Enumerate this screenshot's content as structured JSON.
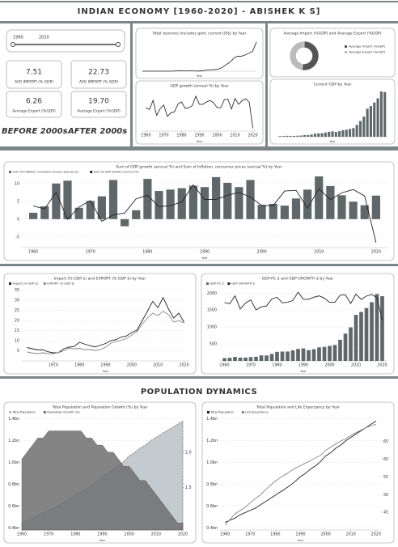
{
  "header": {
    "title": "INDIAN ECONOMY [1960-2020] - ABISHEK K S]"
  },
  "slicer": {
    "start": "1960",
    "end": "2020"
  },
  "kpis": {
    "before": [
      {
        "value": "7.51",
        "label": "AVG IMPORT (% GDP)"
      },
      {
        "value": "6.26",
        "label": "Average Export (%GDP)"
      }
    ],
    "after": [
      {
        "value": "22.73",
        "label": "AVG IMPORT (% GDP)"
      },
      {
        "value": "19.70",
        "label": "Average Export (%GDP)"
      }
    ]
  },
  "period_labels": {
    "before": "BEFORE 2000s",
    "after": "AFTER 2000s"
  },
  "section_title": "POPULATION DYNAMICS",
  "chart_data": [
    {
      "type": "line",
      "title": "Total reserves (includes gold, current US$) by Year",
      "xlabel": "Year",
      "x": [
        1960,
        1962,
        1964,
        1966,
        1968,
        1970,
        1972,
        1974,
        1976,
        1978,
        1980,
        1982,
        1984,
        1986,
        1988,
        1990,
        1992,
        1994,
        1996,
        1998,
        2000,
        2002,
        2004,
        2006,
        2008,
        2010,
        2012,
        2014,
        2016,
        2018,
        2020
      ],
      "xlim": [
        1960,
        2020
      ],
      "ylim": [
        0,
        650
      ],
      "series": [
        {
          "name": "Total reserves (includes gold, current US$)",
          "color": "#333333",
          "values": [
            0.7,
            0.6,
            0.5,
            0.6,
            0.8,
            1.0,
            1.2,
            1.4,
            2.9,
            7.4,
            11.9,
            5.7,
            6.4,
            6.6,
            5.8,
            3.9,
            9.8,
            25.2,
            24.9,
            32.5,
            41.1,
            75.4,
            131.0,
            178.0,
            257.4,
            300.5,
            300.4,
            325.1,
            361.7,
            399.2,
            590.2
          ]
        }
      ]
    },
    {
      "type": "line",
      "title": "GDP growth (annual %) by Year",
      "xlabel": "Year",
      "x": [
        1960,
        1962,
        1964,
        1966,
        1968,
        1970,
        1972,
        1974,
        1976,
        1978,
        1980,
        1982,
        1984,
        1986,
        1988,
        1990,
        1992,
        1994,
        1996,
        1998,
        2000,
        2002,
        2004,
        2006,
        2008,
        2010,
        2012,
        2014,
        2016,
        2018,
        2020
      ],
      "xlim": [
        1958,
        2022
      ],
      "xticks": [
        1960,
        1970,
        1980,
        1990,
        2000,
        2010,
        2020
      ],
      "ylim": [
        -8,
        12
      ],
      "series": [
        {
          "name": "GDP growth (annual %)",
          "color": "#333333",
          "values": [
            3.7,
            2.9,
            7.5,
            -0.1,
            3.4,
            5.2,
            -0.6,
            1.2,
            1.7,
            5.7,
            6.7,
            3.5,
            3.8,
            4.8,
            9.6,
            5.5,
            5.5,
            6.7,
            7.5,
            6.2,
            3.8,
            3.8,
            7.9,
            8.1,
            3.1,
            8.5,
            5.5,
            7.4,
            8.3,
            6.5,
            -6.6
          ]
        }
      ]
    },
    {
      "type": "pie",
      "title": "Average Import (%GDP) and Average Export (%GDP)",
      "categories": [
        "Average Import (%GDP)",
        "Average Export (%GDP)"
      ],
      "values": [
        12.5,
        11.3
      ],
      "colors": [
        "#555555",
        "#bbbbbb"
      ]
    },
    {
      "type": "bar",
      "title": "Current GDP by Year",
      "xlabel": "Year",
      "x": [
        1960,
        1962,
        1964,
        1966,
        1968,
        1970,
        1972,
        1974,
        1976,
        1978,
        1980,
        1982,
        1984,
        1986,
        1988,
        1990,
        1992,
        1994,
        1996,
        1998,
        2000,
        2002,
        2004,
        2006,
        2008,
        2010,
        2012,
        2014,
        2016,
        2018,
        2020
      ],
      "xlim": [
        1958,
        2022
      ],
      "ylim": [
        0,
        2800
      ],
      "series": [
        {
          "name": "Current GDP",
          "color": "#5f6869",
          "values": [
            37,
            42,
            56,
            46,
            53,
            62,
            71,
            99,
            102,
            136,
            186,
            201,
            208,
            249,
            296,
            321,
            288,
            333,
            392,
            421,
            468,
            514,
            709,
            940,
            1199,
            1676,
            1828,
            2039,
            2295,
            2703,
            2668
          ]
        }
      ]
    },
    {
      "type": "combo",
      "title": "Sum of GDP growth (annual %) and Sum of Inflation, consumer prices (annual %) by Year",
      "xlabel": "Year",
      "x": [
        1960,
        1962,
        1964,
        1966,
        1968,
        1970,
        1972,
        1974,
        1976,
        1978,
        1980,
        1982,
        1984,
        1986,
        1988,
        1990,
        1992,
        1994,
        1996,
        1998,
        2000,
        2002,
        2004,
        2006,
        2008,
        2010,
        2012,
        2014,
        2016,
        2018,
        2020
      ],
      "xlim": [
        1958,
        2022
      ],
      "xticks": [
        1960,
        1970,
        1980,
        1990,
        2000,
        2010,
        2020
      ],
      "ylim": [
        -8,
        12
      ],
      "yticks": [
        -5,
        0,
        5,
        10
      ],
      "grid": true,
      "series": [
        {
          "name": "Sum of Inflation, consumer prices (annual %)",
          "kind": "bar",
          "color": "#5f6869",
          "values": [
            1.8,
            3.6,
            10.0,
            10.8,
            3.2,
            5.1,
            6.4,
            11.0,
            -2.0,
            2.5,
            11.3,
            7.9,
            8.3,
            8.7,
            9.4,
            9.0,
            11.8,
            10.2,
            9.0,
            11.0,
            4.0,
            4.3,
            3.8,
            5.8,
            8.3,
            12.0,
            9.3,
            6.7,
            4.9,
            3.9,
            6.6
          ]
        },
        {
          "name": "Sum of GDP growth (annual %)",
          "kind": "line",
          "color": "#222222",
          "values": [
            3.7,
            2.9,
            7.5,
            -0.1,
            3.4,
            5.2,
            -0.6,
            1.2,
            1.7,
            5.7,
            6.7,
            3.5,
            3.8,
            4.8,
            9.6,
            5.5,
            5.5,
            6.7,
            7.5,
            6.2,
            3.8,
            3.8,
            7.9,
            8.1,
            3.1,
            8.5,
            5.5,
            7.4,
            8.3,
            6.5,
            -6.6
          ]
        }
      ]
    },
    {
      "type": "line",
      "title": "Import (% GDP $) and EXPORT (% GDP $) by Year",
      "xlabel": "Year",
      "x": [
        1960,
        1962,
        1964,
        1966,
        1968,
        1970,
        1972,
        1974,
        1976,
        1978,
        1980,
        1982,
        1984,
        1986,
        1988,
        1990,
        1992,
        1994,
        1996,
        1998,
        2000,
        2002,
        2004,
        2006,
        2008,
        2010,
        2012,
        2014,
        2016,
        2018,
        2020
      ],
      "xlim": [
        1958,
        2022
      ],
      "xticks": [
        1970,
        1980,
        1990,
        2000,
        2010,
        2020
      ],
      "ylim": [
        0,
        36
      ],
      "yticks": [
        5,
        10,
        15,
        20,
        25,
        30,
        35
      ],
      "grid": true,
      "series": [
        {
          "name": "Import (% GDP $)",
          "color": "#222222",
          "values": [
            6.6,
            6.0,
            5.5,
            5.5,
            4.5,
            4.0,
            4.0,
            6.0,
            6.8,
            7.1,
            9.2,
            8.3,
            7.5,
            6.9,
            7.7,
            8.6,
            10.0,
            10.5,
            11.8,
            12.3,
            14.1,
            15.2,
            19.9,
            24.5,
            29.4,
            26.3,
            31.3,
            25.8,
            21.2,
            23.6,
            19.1
          ]
        },
        {
          "name": "EXPORT (% GDP $)",
          "color": "#888888",
          "values": [
            4.4,
            3.9,
            3.6,
            4.0,
            3.6,
            3.6,
            4.0,
            5.0,
            6.3,
            6.0,
            6.2,
            5.6,
            5.7,
            5.1,
            5.6,
            6.8,
            8.7,
            9.6,
            10.2,
            11.0,
            12.8,
            14.5,
            18.1,
            21.1,
            23.6,
            22.4,
            24.5,
            22.9,
            19.2,
            19.9,
            18.7
          ]
        }
      ]
    },
    {
      "type": "combo",
      "title": "GDP-PC $ and GDP GROWTH $ by Year",
      "xlabel": "Year",
      "x": [
        1960,
        1962,
        1964,
        1966,
        1968,
        1970,
        1972,
        1974,
        1976,
        1978,
        1980,
        1982,
        1984,
        1986,
        1988,
        1990,
        1992,
        1994,
        1996,
        1998,
        2000,
        2002,
        2004,
        2006,
        2008,
        2010,
        2012,
        2014,
        2016,
        2018,
        2020
      ],
      "xlim": [
        1958,
        2022
      ],
      "xticks": [
        1960,
        1970,
        1980,
        1990,
        2000,
        2010,
        2020
      ],
      "ylim": [
        0,
        2150
      ],
      "yticks": [
        500,
        1000,
        1500,
        2000
      ],
      "y2lim": [
        -30,
        12
      ],
      "grid": true,
      "series": [
        {
          "name": "GDP-PC $",
          "kind": "bar",
          "color": "#5f6869",
          "values": [
            82,
            92,
            116,
            96,
            99,
            112,
            121,
            163,
            160,
            206,
            267,
            275,
            277,
            311,
            355,
            368,
            317,
            346,
            400,
            413,
            443,
            471,
            624,
            806,
            991,
            1358,
            1444,
            1560,
            1733,
            1974,
            1910
          ]
        },
        {
          "name": "GDP GROWTH $",
          "kind": "line",
          "axis": "y2",
          "color": "#222222",
          "values": [
            3.7,
            2.9,
            7.5,
            -0.1,
            3.4,
            5.2,
            -0.6,
            1.2,
            1.7,
            5.7,
            6.7,
            3.5,
            3.8,
            4.8,
            9.6,
            5.5,
            5.5,
            6.7,
            7.5,
            6.2,
            3.8,
            3.8,
            7.9,
            8.1,
            3.1,
            8.5,
            5.5,
            7.4,
            8.3,
            6.5,
            -6.6
          ]
        }
      ]
    },
    {
      "type": "area",
      "title": "Total Population and Population Growth (%) by Year",
      "xlabel": "Year",
      "x": [
        1960,
        1962,
        1964,
        1966,
        1968,
        1970,
        1972,
        1974,
        1976,
        1978,
        1980,
        1982,
        1984,
        1986,
        1988,
        1990,
        1992,
        1994,
        1996,
        1998,
        2000,
        2002,
        2004,
        2006,
        2008,
        2010,
        2012,
        2014,
        2016,
        2018,
        2020
      ],
      "xlim": [
        1960,
        2020
      ],
      "xticks": [
        1960,
        1970,
        1980,
        1990,
        2000,
        2010,
        2020
      ],
      "ylim": [
        0.38,
        1.42
      ],
      "yticks": [
        {
          "value": 0.4,
          "label": "0.4bn"
        },
        {
          "value": 0.6,
          "label": "0.6bn"
        },
        {
          "value": 0.8,
          "label": "0.8bn"
        },
        {
          "value": 1.0,
          "label": "1.0bn"
        },
        {
          "value": 1.2,
          "label": "1.2bn"
        },
        {
          "value": 1.4,
          "label": "1.4bn"
        }
      ],
      "y2lim": [
        0.9,
        2.5
      ],
      "y2ticks": [
        1.5,
        {
          "value": 2.0,
          "label": "2.0"
        }
      ],
      "grid": true,
      "series": [
        {
          "name": "Total Population",
          "color": "#b8c2c6",
          "values": [
            0.45,
            0.47,
            0.49,
            0.52,
            0.54,
            0.56,
            0.58,
            0.61,
            0.64,
            0.67,
            0.7,
            0.73,
            0.76,
            0.79,
            0.83,
            0.87,
            0.9,
            0.94,
            0.97,
            1.01,
            1.06,
            1.09,
            1.13,
            1.16,
            1.2,
            1.23,
            1.26,
            1.29,
            1.32,
            1.35,
            1.38
          ]
        },
        {
          "name": "Population Growth (%)",
          "axis": "y2",
          "color": "#6e6e6e",
          "values": [
            1.9,
            2.0,
            2.1,
            2.2,
            2.2,
            2.3,
            2.3,
            2.3,
            2.3,
            2.3,
            2.3,
            2.3,
            2.2,
            2.2,
            2.1,
            2.1,
            2.0,
            2.0,
            1.9,
            1.8,
            1.8,
            1.7,
            1.6,
            1.6,
            1.5,
            1.4,
            1.3,
            1.2,
            1.1,
            1.0,
            1.0
          ]
        }
      ]
    },
    {
      "type": "line",
      "title": "Total Population and Life Expectancy by Year",
      "xlabel": "Year",
      "x": [
        1960,
        1962,
        1964,
        1966,
        1968,
        1970,
        1972,
        1974,
        1976,
        1978,
        1980,
        1982,
        1984,
        1986,
        1988,
        1990,
        1992,
        1994,
        1996,
        1998,
        2000,
        2002,
        2004,
        2006,
        2008,
        2010,
        2012,
        2014,
        2016,
        2018,
        2020
      ],
      "xlim": [
        1958,
        2022
      ],
      "xticks": [
        1960,
        1970,
        1980,
        1990,
        2000,
        2010,
        2020
      ],
      "ylim": [
        0.38,
        1.42
      ],
      "yticks": [
        {
          "value": 0.4,
          "label": "0.4bn"
        },
        {
          "value": 0.6,
          "label": "0.6bn"
        },
        {
          "value": 0.8,
          "label": "0.8bn"
        },
        {
          "value": 1.0,
          "label": "1.0bn"
        },
        {
          "value": 1.2,
          "label": "1.2bn"
        },
        {
          "value": 1.4,
          "label": "1.4bn"
        }
      ],
      "y2lim": [
        40,
        72
      ],
      "y2ticks": [
        45,
        50,
        55,
        60,
        65
      ],
      "grid": true,
      "series": [
        {
          "name": "Total Population",
          "color": "#222222",
          "values": [
            0.45,
            0.47,
            0.49,
            0.52,
            0.54,
            0.56,
            0.58,
            0.61,
            0.64,
            0.67,
            0.7,
            0.73,
            0.76,
            0.79,
            0.83,
            0.87,
            0.9,
            0.94,
            0.97,
            1.01,
            1.06,
            1.09,
            1.13,
            1.16,
            1.2,
            1.23,
            1.26,
            1.29,
            1.32,
            1.35,
            1.38
          ]
        },
        {
          "name": "Life Expectancy",
          "axis": "y2",
          "color": "#888888",
          "values": [
            41.4,
            43.0,
            44.6,
            45.5,
            46.4,
            47.7,
            48.8,
            49.9,
            51.3,
            52.6,
            53.8,
            54.8,
            55.7,
            56.6,
            57.5,
            58.2,
            58.9,
            59.6,
            60.4,
            61.1,
            62.5,
            63.4,
            64.3,
            65.1,
            65.8,
            66.7,
            67.5,
            68.2,
            68.9,
            69.4,
            69.9
          ]
        }
      ]
    }
  ]
}
